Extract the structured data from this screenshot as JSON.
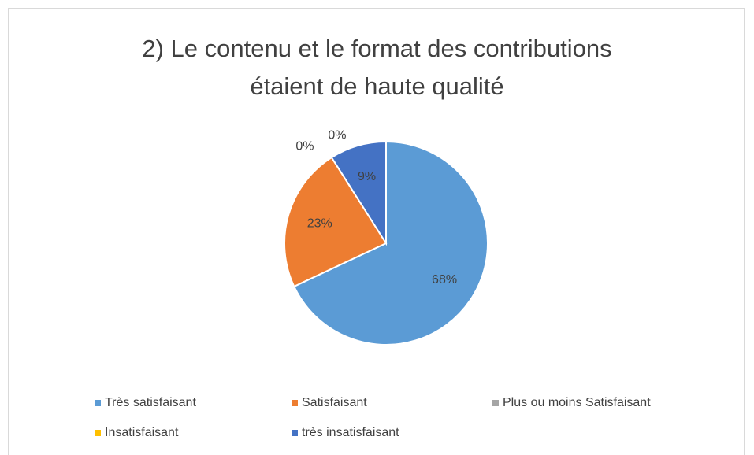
{
  "chart_data": {
    "type": "pie",
    "title": "2) Le contenu et le format des contributions étaient de haute qualité",
    "categories": [
      "Très satisfaisant",
      "Satisfaisant",
      "Plus ou moins Satisfaisant",
      "Insatisfaisant",
      "très insatisfaisant"
    ],
    "values": [
      68,
      23,
      0,
      0,
      9
    ],
    "value_labels": [
      "68%",
      "23%",
      "0%",
      "0%",
      "9%"
    ],
    "colors": [
      "#5b9bd5",
      "#ed7d31",
      "#a5a5a5",
      "#ffc000",
      "#4472c4"
    ],
    "legend": "bottom"
  }
}
